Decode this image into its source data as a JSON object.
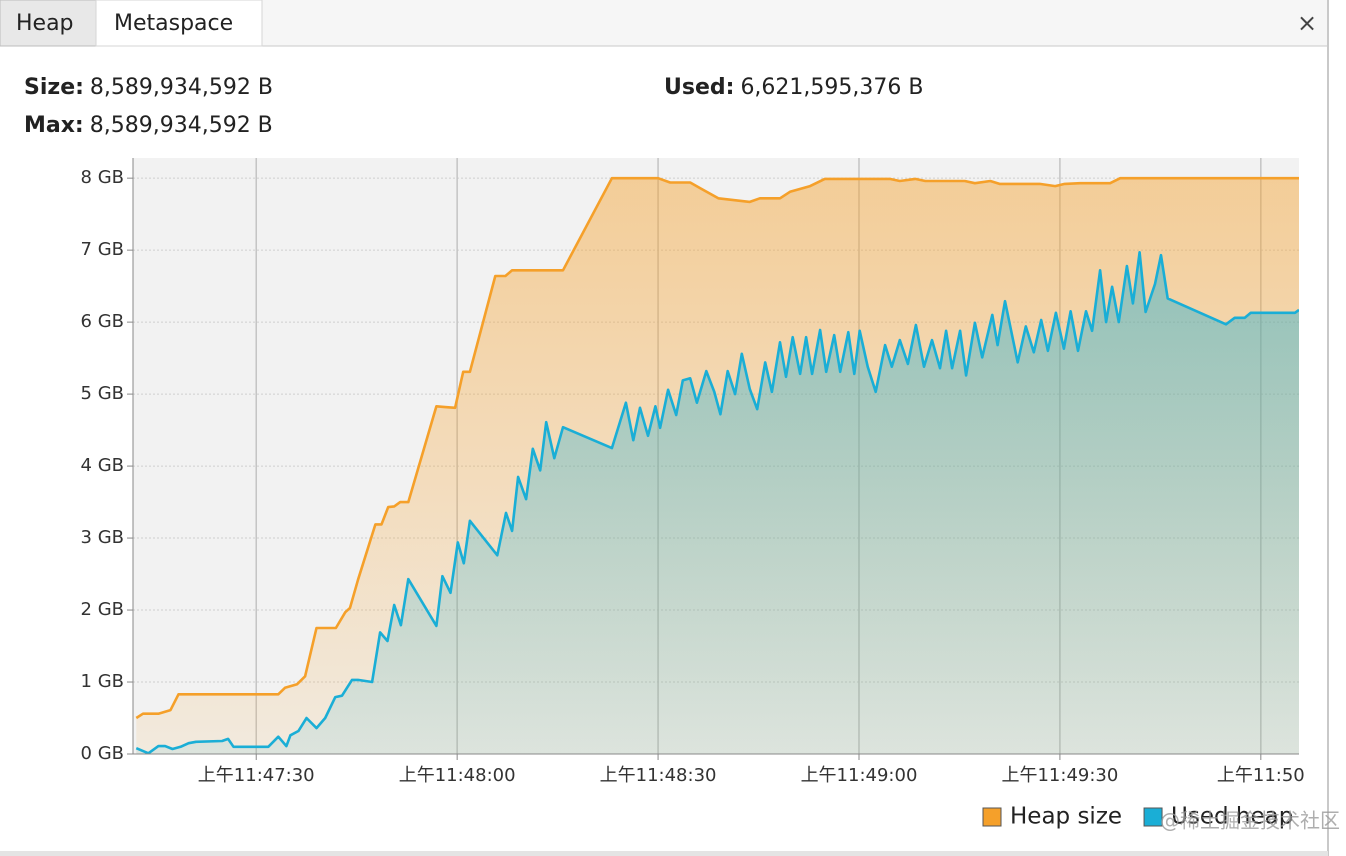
{
  "tabs": [
    "Heap",
    "Metaspace"
  ],
  "close": "×",
  "info": {
    "size_label": "Size:",
    "size": "8,589,934,592 B",
    "max_label": "Max:",
    "max": "8,589,934,592 B",
    "used_label": "Used:",
    "used": "6,621,595,376 B"
  },
  "chart_data": {
    "type": "area",
    "series": [
      {
        "name": "Heap size",
        "color": "#f5a02a",
        "x": [
          42432.1,
          42433.1,
          42435.4,
          42437.2,
          42438.4,
          42453.3,
          42454.3,
          42456.1,
          42457.3,
          42459.0,
          42461.9,
          42463.3,
          42464.0,
          42465.2,
          42467.8,
          42468.7,
          42469.7,
          42470.6,
          42471.5,
          42472.7,
          42476.9,
          42478.2,
          42479.7,
          42480.9,
          42481.9,
          42485.7,
          42487.2,
          42488.2,
          42495.8,
          42503.1,
          42510.0,
          42511.8,
          42514.8,
          42516.3,
          42519.0,
          42523.7,
          42525.2,
          42528.2,
          42529.7,
          42532.7,
          42534.9,
          42544.6,
          42546.1,
          42548.4,
          42549.9,
          42555.8,
          42557.3,
          42559.6,
          42561.0,
          42562.5,
          42567.0,
          42569.3,
          42570.7,
          42573.0,
          42577.5,
          42579.0,
          42605.7
        ],
        "values": [
          0.5,
          0.56,
          0.56,
          0.61,
          0.83,
          0.83,
          0.92,
          0.97,
          1.08,
          1.75,
          1.75,
          1.97,
          2.03,
          2.42,
          3.19,
          3.19,
          3.43,
          3.44,
          3.5,
          3.5,
          4.83,
          4.82,
          4.81,
          5.31,
          5.31,
          6.64,
          6.64,
          6.72,
          6.72,
          8,
          8,
          7.94,
          7.94,
          7.86,
          7.72,
          7.67,
          7.72,
          7.72,
          7.81,
          7.89,
          7.99,
          7.99,
          7.96,
          7.99,
          7.96,
          7.96,
          7.93,
          7.96,
          7.92,
          7.92,
          7.92,
          7.89,
          7.92,
          7.93,
          7.93,
          8,
          8
        ]
      },
      {
        "name": "Used heap",
        "color": "#1aaed6",
        "x": [
          42432.1,
          42433.9,
          42435.4,
          42436.4,
          42437.5,
          42438.7,
          42439.9,
          42441.0,
          42444.9,
          42445.8,
          42446.6,
          42451.8,
          42453.3,
          42454.5,
          42455.1,
          42456.3,
          42457.5,
          42459.0,
          42460.3,
          42461.8,
          42462.8,
          42464.3,
          42465.2,
          42467.3,
          42468.5,
          42469.6,
          42470.6,
          42471.6,
          42472.7,
          42476.9,
          42477.8,
          42479.0,
          42480.1,
          42481.0,
          42481.9,
          42486.0,
          42487.3,
          42488.2,
          42489.1,
          42490.3,
          42491.3,
          42492.4,
          42493.3,
          42494.5,
          42495.8,
          42503.1,
          42505.2,
          42506.3,
          42507.3,
          42508.5,
          42509.6,
          42510.3,
          42511.5,
          42512.7,
          42513.7,
          42514.8,
          42515.8,
          42517.2,
          42518.4,
          42519.3,
          42520.4,
          42521.5,
          42522.5,
          42523.7,
          42524.8,
          42526.0,
          42527.0,
          42528.2,
          42529.1,
          42530.1,
          42531.2,
          42532.1,
          42533.0,
          42534.2,
          42535.1,
          42536.3,
          42537.2,
          42538.4,
          42539.3,
          42540.1,
          42541.3,
          42542.5,
          42543.9,
          42544.9,
          42546.1,
          42547.3,
          42548.5,
          42549.7,
          42550.9,
          42552.1,
          42553.0,
          42553.9,
          42555.1,
          42556.0,
          42557.3,
          42558.4,
          42559.9,
          42560.7,
          42561.8,
          42562.7,
          42563.7,
          42564.9,
          42566.1,
          42567.2,
          42568.2,
          42569.4,
          42570.6,
          42571.6,
          42572.7,
          42573.9,
          42574.8,
          42576.0,
          42576.9,
          42577.8,
          42578.8,
          42580.0,
          42580.9,
          42581.9,
          42582.8,
          42584.2,
          42585.1,
          42586.1,
          42594.8,
          42596.1,
          42597.6,
          42598.5,
          42605.1,
          42605.7
        ],
        "values": [
          0.08,
          0.01,
          0.11,
          0.11,
          0.07,
          0.1,
          0.15,
          0.17,
          0.18,
          0.21,
          0.1,
          0.1,
          0.24,
          0.11,
          0.26,
          0.32,
          0.5,
          0.36,
          0.5,
          0.79,
          0.81,
          1.03,
          1.03,
          1.0,
          1.69,
          1.57,
          2.07,
          1.79,
          2.43,
          1.78,
          2.47,
          2.24,
          2.94,
          2.65,
          3.24,
          2.76,
          3.35,
          3.1,
          3.85,
          3.54,
          4.24,
          3.94,
          4.61,
          4.11,
          4.54,
          4.25,
          4.88,
          4.36,
          4.81,
          4.42,
          4.83,
          4.53,
          5.06,
          4.71,
          5.19,
          5.22,
          4.88,
          5.32,
          5.03,
          4.72,
          5.32,
          5.0,
          5.56,
          5.07,
          4.79,
          5.44,
          5.03,
          5.72,
          5.24,
          5.79,
          5.28,
          5.79,
          5.28,
          5.89,
          5.31,
          5.82,
          5.31,
          5.86,
          5.28,
          5.88,
          5.38,
          5.03,
          5.68,
          5.38,
          5.75,
          5.42,
          5.96,
          5.38,
          5.75,
          5.36,
          5.88,
          5.36,
          5.88,
          5.26,
          5.99,
          5.51,
          6.1,
          5.68,
          6.29,
          5.89,
          5.44,
          5.94,
          5.58,
          6.03,
          5.6,
          6.13,
          5.63,
          6.15,
          5.6,
          6.15,
          5.88,
          6.72,
          6.0,
          6.49,
          6.0,
          6.78,
          6.26,
          6.97,
          6.14,
          6.53,
          6.93,
          6.33,
          5.97,
          6.06,
          6.06,
          6.13,
          6.13,
          6.17
        ]
      }
    ],
    "xlim": [
      42431.6,
      42605.7
    ],
    "xticks": [
      {
        "value": 42450,
        "label": "上午11:47:30"
      },
      {
        "value": 42480,
        "label": "上午11:48:00"
      },
      {
        "value": 42510,
        "label": "上午11:48:30"
      },
      {
        "value": 42540,
        "label": "上午11:49:00"
      },
      {
        "value": 42570,
        "label": "上午11:49:30"
      },
      {
        "value": 42600,
        "label": "上午11:50"
      }
    ],
    "ylim": [
      0,
      8.28
    ],
    "yticks": [
      {
        "value": 0,
        "label": "0 GB"
      },
      {
        "value": 1,
        "label": "1 GB"
      },
      {
        "value": 2,
        "label": "2 GB"
      },
      {
        "value": 3,
        "label": "3 GB"
      },
      {
        "value": 4,
        "label": "4 GB"
      },
      {
        "value": 5,
        "label": "5 GB"
      },
      {
        "value": 6,
        "label": "6 GB"
      },
      {
        "value": 7,
        "label": "7 GB"
      },
      {
        "value": 8,
        "label": "8 GB"
      }
    ],
    "grid": true,
    "legend": "lower right"
  },
  "watermark": "@稀土掘金技术社区"
}
